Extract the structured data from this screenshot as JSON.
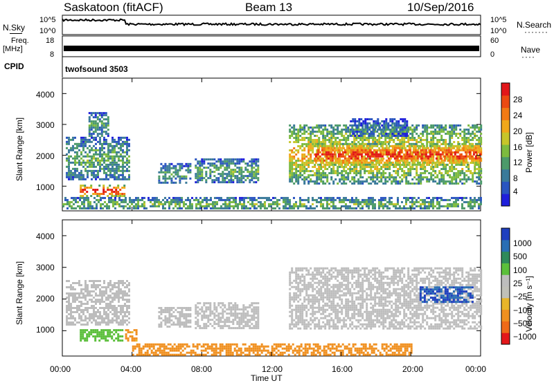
{
  "header": {
    "station": "Saskatoon (fitACF)",
    "beam": "Beam 13",
    "date": "10/Sep/2016"
  },
  "strips": {
    "nsky_label": "N.Sky",
    "nsky_tick_top": "10^5",
    "nsky_tick_bottom": "10^0",
    "nsearch_label": "N.Search",
    "nsearch_tick_top": "10^5",
    "nsearch_tick_bottom": "10^0",
    "freq_label": "Freq.",
    "freq_unit": "[MHz]",
    "freq_tick_top": "18",
    "freq_tick_bottom": "8",
    "nave_label": "Nave",
    "nave_tick_top": "60",
    "nave_tick_bottom": "0",
    "cpid_label": "CPID",
    "cpid_value": "twofsound 3503"
  },
  "colors": {
    "power_scale": [
      "#1f1fdb",
      "#2a55c0",
      "#3a7a9a",
      "#4c9a6a",
      "#7dbb3f",
      "#c7c52a",
      "#f0a81a",
      "#f27a14",
      "#ec4a12",
      "#e2171a"
    ],
    "velocity_scale": [
      "#1f3fbf",
      "#2a6fb5",
      "#2f8a5a",
      "#5bbf3b",
      "#bdbdbd",
      "#c0c0b8",
      "#e8b52a",
      "#f09020",
      "#ee6a18",
      "#e3171a"
    ]
  },
  "chart_data": [
    {
      "type": "heatmap",
      "panel": "power",
      "ylabel": "Slant Range [km]",
      "yticks": [
        "1000",
        "2000",
        "3000",
        "4000"
      ],
      "ylim": [
        200,
        4500
      ],
      "colorbar_label": "Power [dB]",
      "colorbar_ticks": [
        "4",
        "8",
        "12",
        "16",
        "20",
        "24",
        "28"
      ],
      "colorbar_range": [
        0,
        30
      ],
      "regions": [
        {
          "t_start": 0.2,
          "t_end": 3.8,
          "r_start": 1200,
          "r_end": 2600,
          "power": 10
        },
        {
          "t_start": 1.0,
          "t_end": 3.6,
          "r_start": 700,
          "r_end": 1050,
          "power": 26
        },
        {
          "t_start": 1.5,
          "t_end": 2.6,
          "r_start": 2600,
          "r_end": 3400,
          "power": 9
        },
        {
          "t_start": 5.5,
          "t_end": 7.4,
          "r_start": 1100,
          "r_end": 1750,
          "power": 9
        },
        {
          "t_start": 7.6,
          "t_end": 11.2,
          "r_start": 1100,
          "r_end": 1900,
          "power": 10
        },
        {
          "t_start": 13.0,
          "t_end": 24.0,
          "r_start": 1100,
          "r_end": 3000,
          "power": 17
        },
        {
          "t_start": 14.5,
          "t_end": 24.0,
          "r_start": 1700,
          "r_end": 2400,
          "power": 25
        },
        {
          "t_start": 16.5,
          "t_end": 19.8,
          "r_start": 2600,
          "r_end": 3200,
          "power": 6
        },
        {
          "t_start": 0.0,
          "t_end": 24.0,
          "r_start": 250,
          "r_end": 650,
          "power": 11
        }
      ]
    },
    {
      "type": "heatmap",
      "panel": "velocity",
      "ylabel": "Slant Range [km]",
      "yticks": [
        "1000",
        "2000",
        "3000",
        "4000"
      ],
      "ylim": [
        200,
        4500
      ],
      "colorbar_label": "Velocity [m s⁻¹]",
      "colorbar_ticks": [
        "1000",
        "500",
        "100",
        "25",
        "−25",
        "−100",
        "−500",
        "−1000"
      ],
      "colorbar_range": [
        -1000,
        1000
      ],
      "xlabel": "Time UT",
      "xticks": [
        "00:00",
        "04:00",
        "08:00",
        "12:00",
        "16:00",
        "20:00",
        "00:00"
      ],
      "xlim": [
        0,
        24
      ],
      "regions": [
        {
          "t_start": 0.2,
          "t_end": 3.8,
          "r_start": 1200,
          "r_end": 2600,
          "velocity": 0
        },
        {
          "t_start": 1.0,
          "t_end": 3.4,
          "r_start": 700,
          "r_end": 1050,
          "velocity": 200
        },
        {
          "t_start": 3.6,
          "t_end": 4.2,
          "r_start": 700,
          "r_end": 1050,
          "velocity": -150
        },
        {
          "t_start": 5.5,
          "t_end": 7.4,
          "r_start": 1100,
          "r_end": 1750,
          "velocity": 0
        },
        {
          "t_start": 7.6,
          "t_end": 11.2,
          "r_start": 1100,
          "r_end": 1900,
          "velocity": 0
        },
        {
          "t_start": 13.0,
          "t_end": 24.0,
          "r_start": 1100,
          "r_end": 3000,
          "velocity": 0
        },
        {
          "t_start": 20.5,
          "t_end": 23.5,
          "r_start": 1900,
          "r_end": 2400,
          "velocity": 700
        },
        {
          "t_start": 4.0,
          "t_end": 20.0,
          "r_start": 250,
          "r_end": 600,
          "velocity": -200
        }
      ]
    }
  ]
}
